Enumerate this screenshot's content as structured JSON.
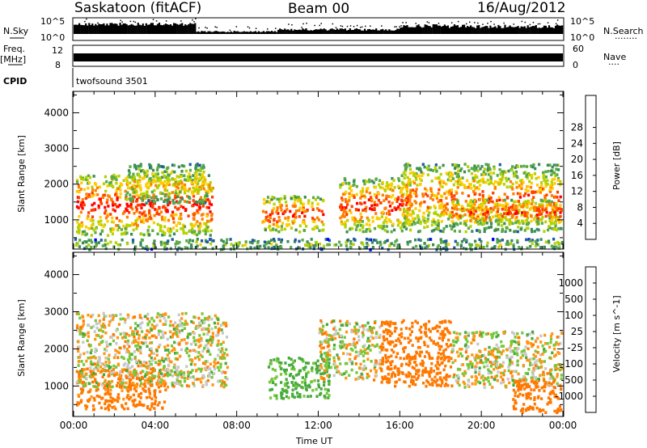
{
  "header": {
    "title": "Saskatoon (fitACF)",
    "beam": "Beam 00",
    "date": "16/Aug/2012"
  },
  "status_panels": {
    "nsky_label": "N.Sky",
    "nsearch_label": "N.Search",
    "nsearch_dots": "........",
    "nsky_ticks": [
      "10^5",
      "10^0"
    ],
    "freq_label_1": "Freq.",
    "freq_label_2": "[MHz]",
    "freq_ticks": [
      "12",
      "8"
    ],
    "nave_label": "Nave",
    "nave_dots": "....",
    "nave_ticks": [
      "60",
      "0"
    ],
    "cpid_label": "CPID",
    "cpid_value": "twofsound 3501"
  },
  "colors": {
    "power": [
      "#0000ff",
      "#1e5aa0",
      "#3c8c5a",
      "#5aaa46",
      "#b4d200",
      "#ffcc00",
      "#ff8000",
      "#ff4000",
      "#ff0000"
    ],
    "velocity": [
      "#1e3cb4",
      "#2d7832",
      "#46aa3c",
      "#78c83c",
      "#c8c8c8",
      "#ff9614",
      "#ff7800",
      "#ff3c00",
      "#ff0000"
    ],
    "ground": "#c8c8c8"
  },
  "chart_data": [
    {
      "type": "heatmap",
      "title": "Power",
      "ylabel": "Slant Range [km]",
      "xlabel": "Time UT",
      "x_ticks": [
        "00:00",
        "04:00",
        "08:00",
        "12:00",
        "16:00",
        "20:00",
        "00:00"
      ],
      "xlim_hours": [
        0,
        24
      ],
      "y_ticks": [
        1000,
        2000,
        3000,
        4000
      ],
      "ylim": [
        180,
        4600
      ],
      "colorbar": {
        "label": "Power [dB]",
        "ticks": [
          "4",
          "8",
          "12",
          "16",
          "20",
          "24",
          "28"
        ],
        "range": [
          0,
          30
        ]
      },
      "features_km": [
        {
          "t0": 0.1,
          "t1": 6.8,
          "r0": 600,
          "r1": 2300,
          "peak": 28
        },
        {
          "t0": 2.5,
          "t1": 6.5,
          "r0": 1500,
          "r1": 2600,
          "peak": 20
        },
        {
          "t0": 9.2,
          "t1": 12.2,
          "r0": 700,
          "r1": 1700,
          "peak": 27
        },
        {
          "t0": 13.0,
          "t1": 16.5,
          "r0": 700,
          "r1": 2200,
          "peak": 27
        },
        {
          "t0": 16.0,
          "t1": 23.9,
          "r0": 700,
          "r1": 2600,
          "peak": 24
        },
        {
          "t0": 18.5,
          "t1": 23.9,
          "r0": 900,
          "r1": 1600,
          "peak": 28
        },
        {
          "t0": 0.0,
          "t1": 24.0,
          "r0": 200,
          "r1": 500,
          "peak": 14
        }
      ]
    },
    {
      "type": "heatmap",
      "title": "Velocity",
      "ylabel": "Slant Range [km]",
      "xlabel": "Time UT",
      "x_ticks": [
        "00:00",
        "04:00",
        "08:00",
        "12:00",
        "16:00",
        "20:00",
        "00:00"
      ],
      "xlim_hours": [
        0,
        24
      ],
      "y_ticks": [
        1000,
        2000,
        3000,
        4000
      ],
      "ylim": [
        180,
        4600
      ],
      "colorbar": {
        "label": "Velocity [m s^-1]",
        "ticks": [
          "1000",
          "500",
          "100",
          "25",
          "-25",
          "-100",
          "-500",
          "-1000"
        ]
      },
      "features_km": [
        {
          "t0": 0.1,
          "t1": 4.5,
          "r0": 400,
          "r1": 1500,
          "vel": -200
        },
        {
          "t0": 0.1,
          "t1": 7.5,
          "r0": 1000,
          "r1": 3000,
          "vel": 0
        },
        {
          "t0": 9.5,
          "t1": 12.5,
          "r0": 700,
          "r1": 1800,
          "vel": 150
        },
        {
          "t0": 12.0,
          "t1": 15.0,
          "r0": 1200,
          "r1": 2800,
          "vel": 0
        },
        {
          "t0": 15.0,
          "t1": 18.5,
          "r0": 1000,
          "r1": 2800,
          "vel": -300
        },
        {
          "t0": 18.5,
          "t1": 23.9,
          "r0": 1000,
          "r1": 2500,
          "vel": 0
        },
        {
          "t0": 21.5,
          "t1": 23.9,
          "r0": 300,
          "r1": 1200,
          "vel": -250
        }
      ]
    }
  ]
}
